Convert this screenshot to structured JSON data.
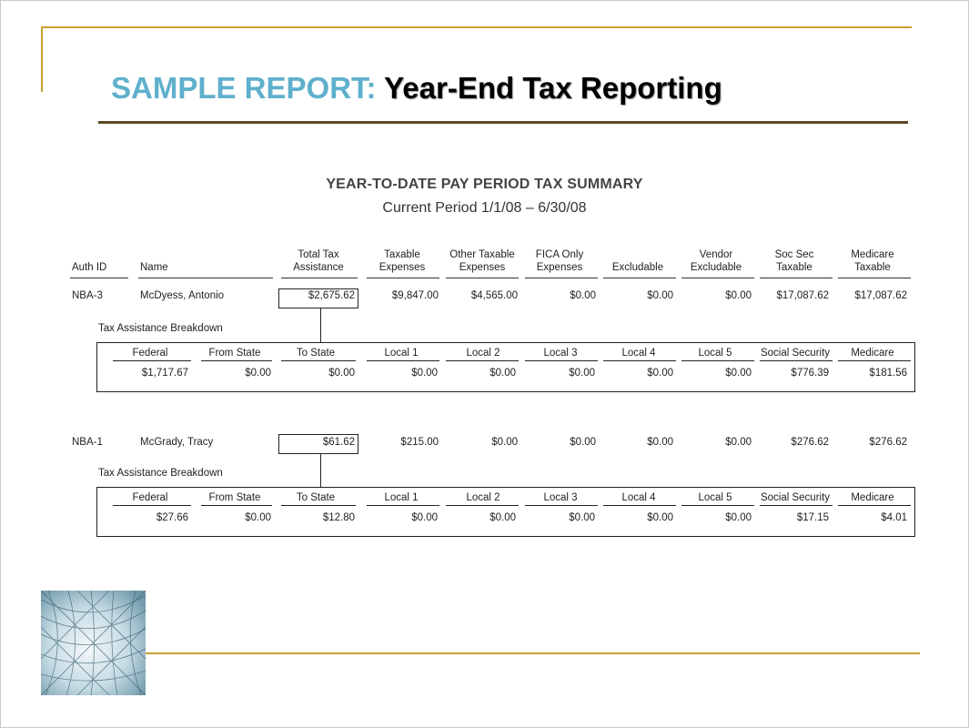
{
  "slide": {
    "title_lead": "SAMPLE REPORT:",
    "title_rest": "Year-End Tax Reporting",
    "colors": {
      "accent_blue": "#5fb0cc",
      "gold_rule": "#c9a130",
      "brown_rule": "#5a4722"
    }
  },
  "report": {
    "title": "YEAR-TO-DATE PAY PERIOD TAX SUMMARY",
    "subtitle": "Current Period 1/1/08 – 6/30/08",
    "headers": {
      "auth_id": "Auth ID",
      "name": "Name",
      "total_tax_1": "Total Tax",
      "total_tax_2": "Assistance",
      "taxable_1": "Taxable",
      "taxable_2": "Expenses",
      "other_1": "Other Taxable",
      "other_2": "Expenses",
      "fica_1": "FICA Only",
      "fica_2": "Expenses",
      "excludable": "Excludable",
      "vendor_1": "Vendor",
      "vendor_2": "Excludable",
      "socsec_1": "Soc Sec",
      "socsec_2": "Taxable",
      "medicare_1": "Medicare",
      "medicare_2": "Taxable"
    },
    "breakdown_label": "Tax Assistance Breakdown",
    "breakdown_headers": [
      "Federal",
      "From State",
      "To State",
      "Local 1",
      "Local 2",
      "Local 3",
      "Local 4",
      "Local 5",
      "Social Security",
      "Medicare"
    ],
    "records": [
      {
        "auth_id": "NBA-3",
        "name": "McDyess, Antonio",
        "values": [
          "$2,675.62",
          "$9,847.00",
          "$4,565.00",
          "$0.00",
          "$0.00",
          "$0.00",
          "$17,087.62",
          "$17,087.62"
        ],
        "breakdown": [
          "$1,717.67",
          "$0.00",
          "$0.00",
          "$0.00",
          "$0.00",
          "$0.00",
          "$0.00",
          "$0.00",
          "$776.39",
          "$181.56"
        ]
      },
      {
        "auth_id": "NBA-1",
        "name": "McGrady, Tracy",
        "values": [
          "$61.62",
          "$215.00",
          "$0.00",
          "$0.00",
          "$0.00",
          "$0.00",
          "$276.62",
          "$276.62"
        ],
        "breakdown": [
          "$27.66",
          "$0.00",
          "$12.80",
          "$0.00",
          "$0.00",
          "$0.00",
          "$0.00",
          "$0.00",
          "$17.15",
          "$4.01"
        ]
      }
    ]
  },
  "decor": {
    "image": "glass-dome-photo"
  }
}
